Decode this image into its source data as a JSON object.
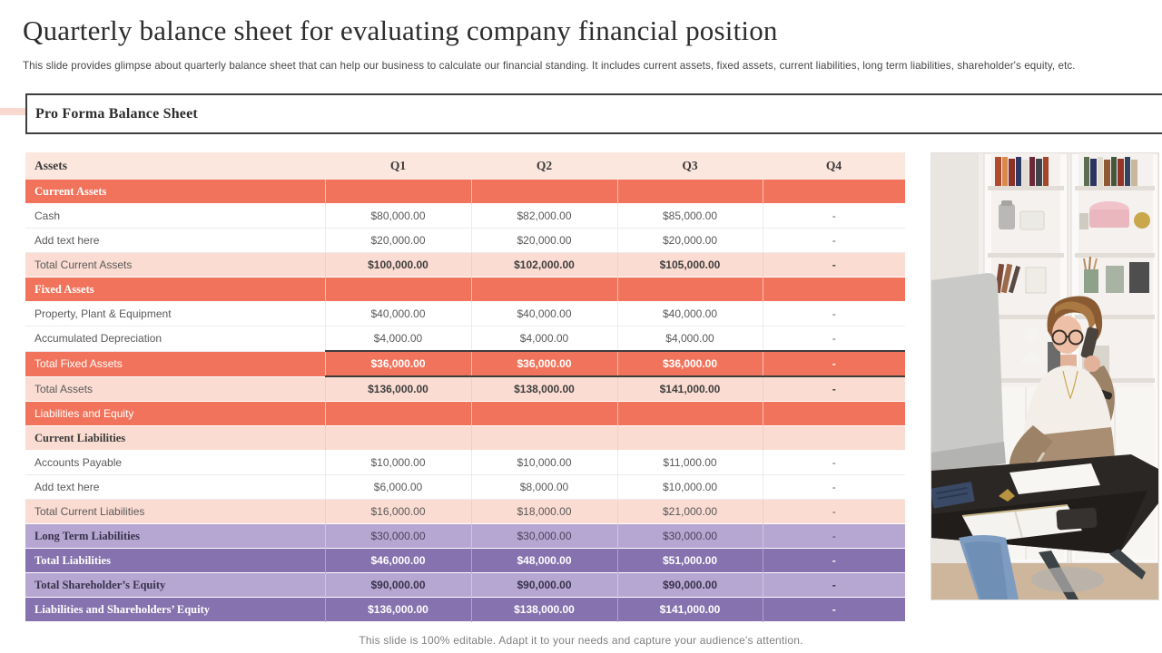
{
  "slide": {
    "title": "Quarterly balance sheet for evaluating company financial position",
    "subtitle": "This slide provides glimpse about quarterly balance sheet that can help our business to calculate our financial standing. It includes current assets, fixed assets, current liabilities, long term liabilities, shareholder's equity, etc.",
    "section_title": "Pro Forma Balance Sheet",
    "footer": "This slide is 100% editable. Adapt it to your needs and capture your audience's attention."
  },
  "colors": {
    "coral": "#f1735b",
    "pink_header": "#fce7df",
    "pink_light": "#fbdcd2",
    "purple_light": "#b6a7d2",
    "purple_dark": "#8672ae",
    "accent_line": "#f9d9cf"
  },
  "table": {
    "headers": [
      "Assets",
      "Q1",
      "Q2",
      "Q3",
      "Q4"
    ],
    "rows": [
      {
        "label": "Current Assets",
        "values": [
          "",
          "",
          "",
          ""
        ],
        "style": "coral-section"
      },
      {
        "label": "Cash",
        "values": [
          "$80,000.00",
          "$82,000.00",
          "$85,000.00",
          "-"
        ],
        "style": "plain"
      },
      {
        "label": "Add text here",
        "values": [
          "$20,000.00",
          "$20,000.00",
          "$20,000.00",
          "-"
        ],
        "style": "plain"
      },
      {
        "label": "Total Current Assets",
        "values": [
          "$100,000.00",
          "$102,000.00",
          "$105,000.00",
          "-"
        ],
        "style": "pink-total-bold"
      },
      {
        "label": "Fixed Assets",
        "values": [
          "",
          "",
          "",
          ""
        ],
        "style": "coral-section"
      },
      {
        "label": "Property, Plant & Equipment",
        "values": [
          "$40,000.00",
          "$40,000.00",
          "$40,000.00",
          "-"
        ],
        "style": "plain"
      },
      {
        "label": "Accumulated Depreciation",
        "values": [
          "$4,000.00",
          "$4,000.00",
          "$4,000.00",
          "-"
        ],
        "style": "plain"
      },
      {
        "label": "Total Fixed Assets",
        "values": [
          "$36,000.00",
          "$36,000.00",
          "$36,000.00",
          "-"
        ],
        "style": "coral-total"
      },
      {
        "label": "Total Assets",
        "values": [
          "$136,000.00",
          "$138,000.00",
          "$141,000.00",
          "-"
        ],
        "style": "pink-total-bold"
      },
      {
        "label": "Liabilities and Equity",
        "values": [
          "",
          "",
          "",
          ""
        ],
        "style": "coral-label"
      },
      {
        "label": "Current Liabilities",
        "values": [
          "",
          "",
          "",
          ""
        ],
        "style": "pink-section"
      },
      {
        "label": "Accounts Payable",
        "values": [
          "$10,000.00",
          "$10,000.00",
          "$11,000.00",
          "-"
        ],
        "style": "plain"
      },
      {
        "label": "Add text here",
        "values": [
          "$6,000.00",
          "$8,000.00",
          "$10,000.00",
          "-"
        ],
        "style": "plain"
      },
      {
        "label": "Total Current Liabilities",
        "values": [
          "$16,000.00",
          "$18,000.00",
          "$21,000.00",
          "-"
        ],
        "style": "pink-total"
      },
      {
        "label": "Long Term Liabilities",
        "values": [
          "$30,000.00",
          "$30,000.00",
          "$30,000.00",
          "-"
        ],
        "style": "purple-light"
      },
      {
        "label": "Total Liabilities",
        "values": [
          "$46,000.00",
          "$48,000.00",
          "$51,000.00",
          "-"
        ],
        "style": "purple-dark"
      },
      {
        "label": "Total Shareholder’s Equity",
        "values": [
          "$90,000.00",
          "$90,000.00",
          "$90,000.00",
          "-"
        ],
        "style": "purple-light-bold"
      },
      {
        "label": "Liabilities and Shareholders’ Equity",
        "values": [
          "$136,000.00",
          "$138,000.00",
          "$141,000.00",
          "-"
        ],
        "style": "purple-dark"
      }
    ]
  },
  "photo": {
    "description": "woman-on-phone-writing-at-desk"
  }
}
